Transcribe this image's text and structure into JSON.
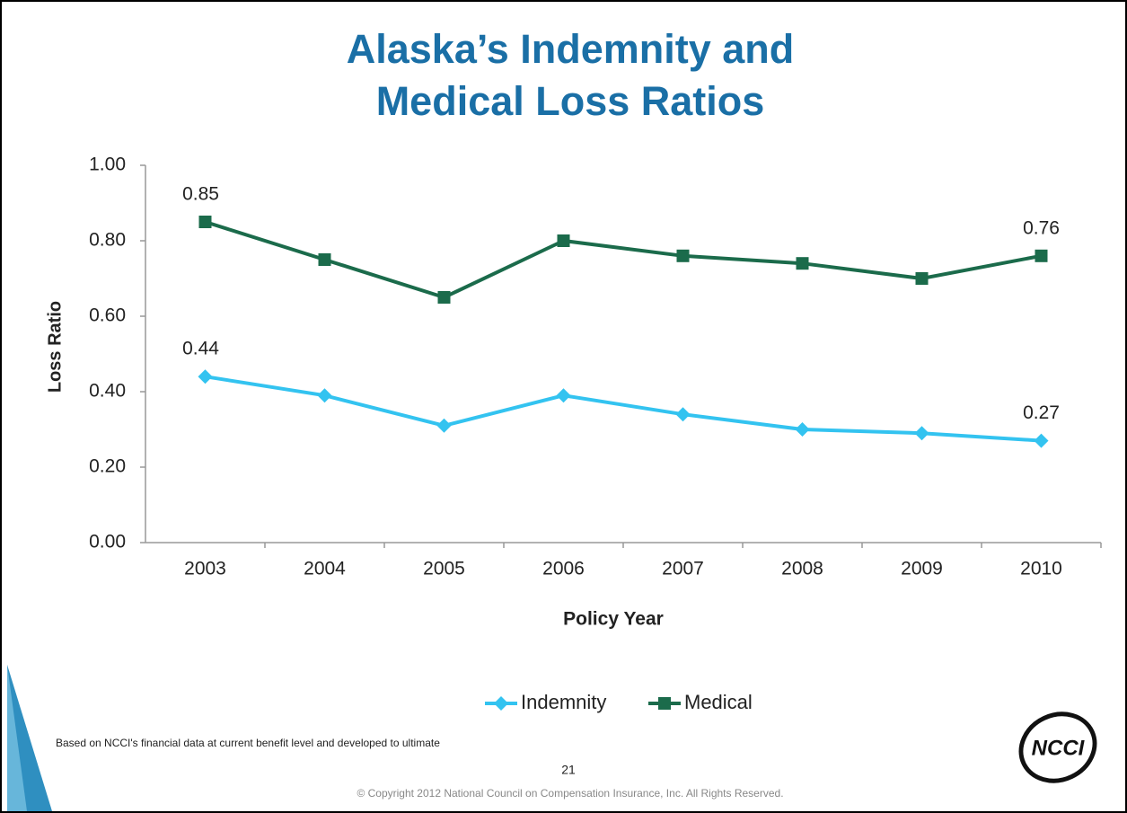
{
  "chart_data": {
    "type": "line",
    "title": [
      "Alaska’s Indemnity and",
      "Medical Loss Ratios"
    ],
    "categories": [
      "2003",
      "2004",
      "2005",
      "2006",
      "2007",
      "2008",
      "2009",
      "2010"
    ],
    "series": [
      {
        "name": "Indemnity",
        "color": "#33c3f0",
        "marker": "diamond",
        "values": [
          0.44,
          0.39,
          0.31,
          0.39,
          0.34,
          0.3,
          0.29,
          0.27
        ],
        "value_labels": [
          "0.44",
          null,
          null,
          null,
          null,
          null,
          null,
          "0.27"
        ]
      },
      {
        "name": "Medical",
        "color": "#1b6b4b",
        "marker": "square",
        "values": [
          0.85,
          0.75,
          0.65,
          0.8,
          0.76,
          0.74,
          0.7,
          0.76
        ],
        "value_labels": [
          "0.85",
          null,
          null,
          null,
          null,
          null,
          null,
          "0.76"
        ]
      }
    ],
    "ylim": [
      0,
      1
    ],
    "yticks": [
      {
        "value": 0,
        "label": "0.00"
      },
      {
        "value": 0.2,
        "label": "0.20"
      },
      {
        "value": 0.4,
        "label": "0.40"
      },
      {
        "value": 0.6,
        "label": "0.60"
      },
      {
        "value": 0.8,
        "label": "0.80"
      },
      {
        "value": 1,
        "label": "1.00"
      }
    ],
    "ylabel": "Loss Ratio",
    "xlabel": "Policy Year",
    "grid": false,
    "legend": "bottom"
  },
  "footer": {
    "note": "Based on NCCI's financial data at current benefit level and developed to ultimate",
    "page": "21",
    "copyright": "© Copyright 2012 National Council on Compensation Insurance, Inc. All Rights Reserved.",
    "logo": "NCCI"
  }
}
